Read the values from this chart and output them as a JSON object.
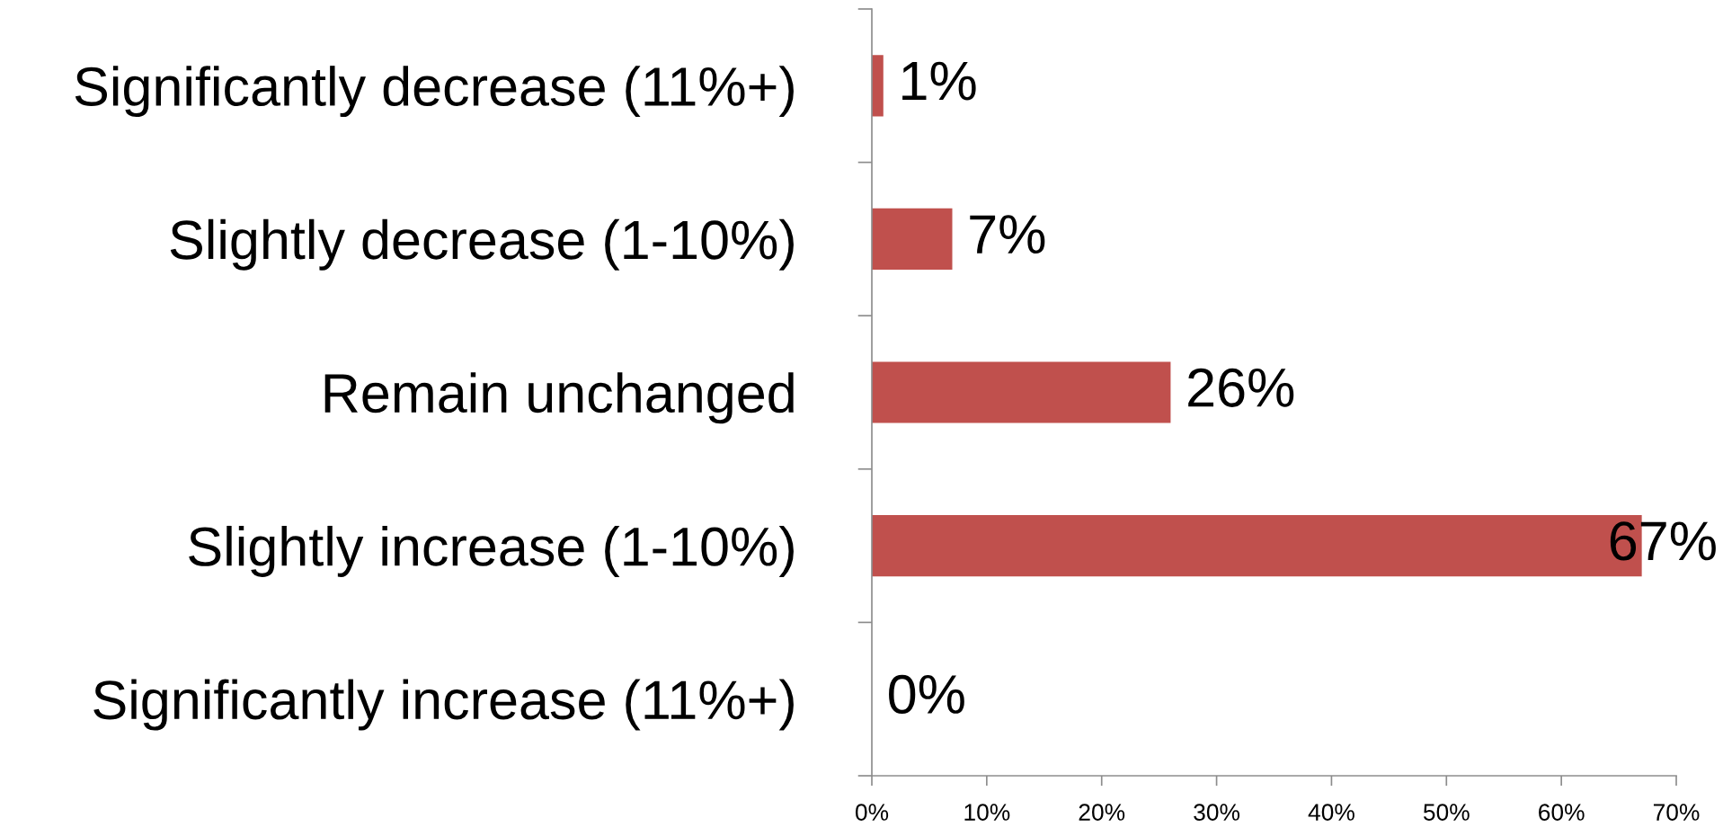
{
  "chart_data": {
    "type": "bar",
    "orientation": "horizontal",
    "categories": [
      "Significantly decrease (11%+)",
      "Slightly decrease (1-10%)",
      "Remain unchanged",
      "Slightly increase (1-10%)",
      "Significantly increase (11%+)"
    ],
    "values": [
      1,
      7,
      26,
      67,
      0
    ],
    "color": "#c0504d",
    "value_labels": [
      "1%",
      "7%",
      "26%",
      "67%",
      "0%"
    ],
    "xlim": [
      0,
      70
    ],
    "xticks": [
      {
        "value": 0,
        "label": "0%"
      },
      {
        "value": 10,
        "label": "10%"
      },
      {
        "value": 20,
        "label": "20%"
      },
      {
        "value": 30,
        "label": "30%"
      },
      {
        "value": 40,
        "label": "40%"
      },
      {
        "value": 50,
        "label": "50%"
      },
      {
        "value": 60,
        "label": "60%"
      },
      {
        "value": 70,
        "label": "70%"
      }
    ],
    "grid": false
  }
}
